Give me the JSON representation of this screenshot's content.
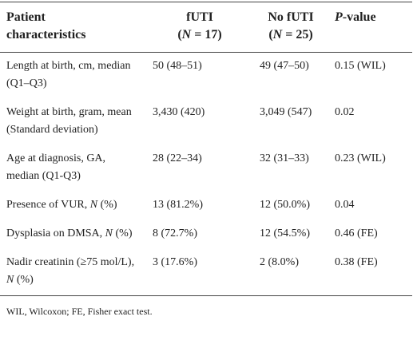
{
  "table": {
    "header": [
      [
        "Patient",
        "characteristics"
      ],
      [
        "fUTI",
        [
          {
            "text": "("
          },
          {
            "text": "N",
            "italic": true
          },
          {
            "text": " = 17)"
          }
        ]
      ],
      [
        "No fUTI",
        [
          {
            "text": "("
          },
          {
            "text": "N",
            "italic": true
          },
          {
            "text": " = 25)"
          }
        ]
      ],
      [
        [
          {
            "text": "P",
            "italic": true
          },
          {
            "text": "-value"
          }
        ]
      ]
    ],
    "rows": [
      [
        "Length at birth, cm, median (Q1–Q3)",
        "50 (48–51)",
        "49 (47–50)",
        "0.15 (WIL)"
      ],
      [
        "Weight at birth, gram, mean (Standard deviation)",
        "3,430 (420)",
        "3,049 (547)",
        "0.02"
      ],
      [
        "Age at diagnosis, GA, median (Q1-Q3)",
        "28 (22–34)",
        "32 (31–33)",
        "0.23 (WIL)"
      ],
      [
        [
          {
            "text": "Presence of VUR, "
          },
          {
            "text": "N",
            "italic": true
          },
          {
            "text": " (%)"
          }
        ],
        "13 (81.2%)",
        "12 (50.0%)",
        "0.04"
      ],
      [
        [
          {
            "text": "Dysplasia on DMSA, "
          },
          {
            "text": "N",
            "italic": true
          },
          {
            "text": " (%)"
          }
        ],
        "8 (72.7%)",
        "12 (54.5%)",
        "0.46 (FE)"
      ],
      [
        [
          {
            "text": "Nadir creatinin (≥75 mol/L), "
          },
          {
            "text": "N",
            "italic": true
          },
          {
            "text": " (%)"
          }
        ],
        "3 (17.6%)",
        "2 (8.0%)",
        "0.38 (FE)"
      ]
    ],
    "footnote": "WIL, Wilcoxon; FE, Fisher exact test."
  }
}
